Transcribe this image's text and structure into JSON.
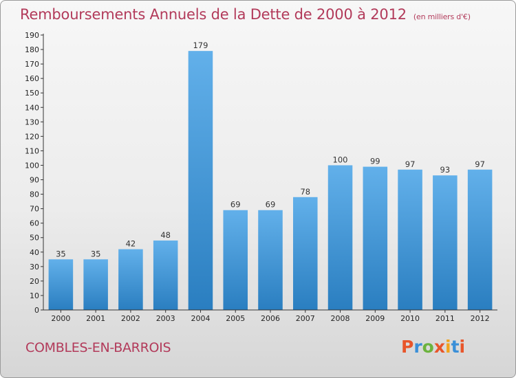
{
  "title": "Remboursements Annuels de la Dette de 2000 à 2012",
  "unit": "(en milliers d'€)",
  "commune": "COMBLES-EN-BARROIS",
  "logo": {
    "text": "Proxiti",
    "colors": [
      "#e8552a",
      "#3a8fd8",
      "#6cb33e",
      "#e8552a",
      "#f2a31b",
      "#3a8fd8",
      "#e8552a"
    ]
  },
  "colors": {
    "bar_light": "#62b0ea",
    "bar_dark": "#2a7ec0",
    "title": "#b23a5a"
  },
  "chart_data": {
    "type": "bar",
    "categories": [
      "2000",
      "2001",
      "2002",
      "2003",
      "2004",
      "2005",
      "2006",
      "2007",
      "2008",
      "2009",
      "2010",
      "2011",
      "2012"
    ],
    "values": [
      35,
      35,
      42,
      48,
      179,
      69,
      69,
      78,
      100,
      99,
      97,
      93,
      97
    ],
    "ylim": [
      0,
      190
    ],
    "yticks": [
      0,
      10,
      20,
      30,
      40,
      50,
      60,
      70,
      80,
      90,
      100,
      110,
      120,
      130,
      140,
      150,
      160,
      170,
      180,
      190
    ],
    "grid": false,
    "data_labels": true
  }
}
